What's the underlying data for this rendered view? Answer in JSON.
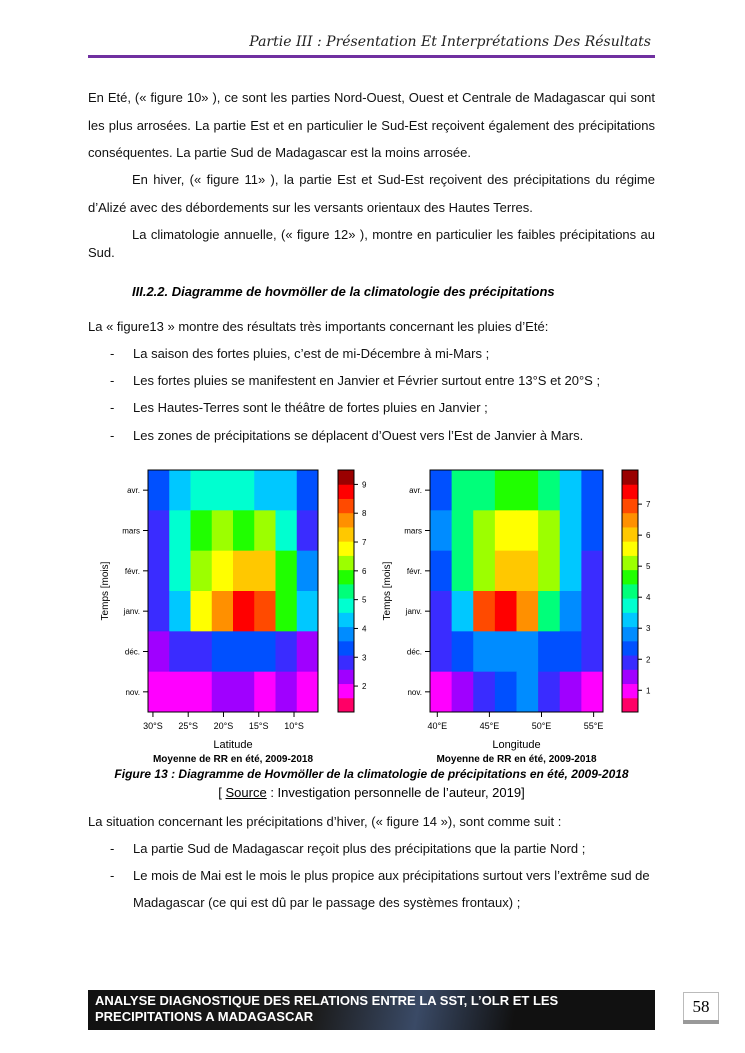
{
  "header": {
    "title": "Partie III : Présentation Et Interprétations Des Résultats"
  },
  "paragraphs": [
    "En Eté, (« figure 10» ), ce sont les parties Nord-Ouest, Ouest et Centrale de Madagascar qui sont les plus arrosées. La partie Est et en particulier le Sud-Est reçoivent également des précipitations conséquentes. La partie Sud de Madagascar est la moins arrosée.",
    "En hiver, (« figure 11» ), la partie Est et Sud-Est reçoivent des précipitations du régime d’Alizé avec des débordements sur les versants orientaux des Hautes Terres.",
    "La climatologie annuelle, (« figure 12» ), montre en particulier les faibles précipitations au Sud."
  ],
  "section_title": "III.2.2. Diagramme de hovmöller de la climatologie des précipitations",
  "intro": "La « figure13 » montre des résultats très importants concernant les pluies d’Eté:",
  "bullets": [
    "La saison des fortes pluies, c’est de mi-Décembre à mi-Mars ;",
    "Les fortes pluies se manifestent en Janvier et Février surtout entre 13°S et 20°S ;",
    "Les Hautes-Terres sont le théâtre de fortes pluies en Janvier ;",
    "Les zones de précipitations se déplacent d’Ouest vers l’Est de Janvier à Mars."
  ],
  "chart_data": [
    {
      "type": "heatmap",
      "ylabel": "Temps [mois]",
      "xlabel": "Latitude",
      "subtitle": "Moyenne de RR en été, 2009-2018",
      "xlim": [
        -30.7,
        -6.6
      ],
      "xticks": [
        {
          "value": -30,
          "label": "30°S"
        },
        {
          "value": -25,
          "label": "25°S"
        },
        {
          "value": -20,
          "label": "20°S"
        },
        {
          "value": -15,
          "label": "15°S"
        },
        {
          "value": -10,
          "label": "10°S"
        }
      ],
      "rows": [
        "avr.",
        "mars",
        "févr.",
        "janv.",
        "déc.",
        "nov."
      ],
      "values": [
        [
          3.5,
          4.5,
          5,
          5,
          5,
          4.5,
          4.5,
          3.5
        ],
        [
          3,
          5,
          6,
          6.5,
          6,
          6.5,
          5,
          3
        ],
        [
          3,
          5,
          6.5,
          7,
          7.5,
          7.5,
          6,
          4
        ],
        [
          3,
          4.5,
          7,
          8,
          9,
          8.5,
          6,
          4.5
        ],
        [
          2.5,
          3,
          3,
          3.5,
          3.5,
          3.5,
          3,
          2.5
        ],
        [
          2,
          2,
          2,
          2.5,
          2.5,
          2,
          2.5,
          2
        ]
      ],
      "clim": [
        1.1,
        9.5
      ],
      "cticks": [
        2,
        3,
        4,
        5,
        6,
        7,
        8,
        9
      ],
      "colors": [
        "#ff0066",
        "#ff00ff",
        "#a000ff",
        "#3a2cff",
        "#0050ff",
        "#008cff",
        "#00c8ff",
        "#00ffd0",
        "#00ff7a",
        "#20ff00",
        "#9cff00",
        "#ffff00",
        "#ffc800",
        "#ff9000",
        "#ff4a00",
        "#ff0000",
        "#9a0000"
      ]
    },
    {
      "type": "heatmap",
      "ylabel": "Temps [mois]",
      "xlabel": "Longitude",
      "subtitle": "Moyenne de RR en été, 2009-2018",
      "xlim": [
        39.3,
        55.9
      ],
      "xticks": [
        {
          "value": 40,
          "label": "40°E"
        },
        {
          "value": 45,
          "label": "45°E"
        },
        {
          "value": 50,
          "label": "50°E"
        },
        {
          "value": 55,
          "label": "55°E"
        }
      ],
      "rows": [
        "avr.",
        "mars",
        "févr.",
        "janv.",
        "déc.",
        "nov."
      ],
      "values": [
        [
          2.5,
          4,
          4,
          4.5,
          4.5,
          4,
          3.5,
          2.5
        ],
        [
          3,
          4,
          5,
          5.5,
          5.5,
          5,
          3.5,
          2.5
        ],
        [
          2.5,
          4,
          5,
          6,
          6,
          5,
          3.5,
          2
        ],
        [
          2,
          3.5,
          7,
          7.5,
          6.5,
          4,
          3,
          2
        ],
        [
          2,
          2.5,
          3,
          3,
          3,
          2.5,
          2.5,
          2
        ],
        [
          1,
          1.5,
          2,
          2.5,
          3,
          2,
          1.5,
          1
        ]
      ],
      "clim": [
        0.3,
        8.1
      ],
      "cticks": [
        1,
        2,
        3,
        4,
        5,
        6,
        7
      ],
      "colors": [
        "#ff0066",
        "#ff00ff",
        "#a000ff",
        "#3a2cff",
        "#0050ff",
        "#008cff",
        "#00c8ff",
        "#00ffd0",
        "#00ff7a",
        "#20ff00",
        "#9cff00",
        "#ffff00",
        "#ffc800",
        "#ff9000",
        "#ff4a00",
        "#ff0000",
        "#9a0000"
      ]
    }
  ],
  "figure_caption": "Figure 13 : Diagramme de Hovmöller de la climatologie de précipitations en été, 2009-2018",
  "source": [
    "[ ",
    "Source",
    " : Investigation personnelle de l’auteur, 2019]"
  ],
  "paragraph2": "La situation concernant les précipitations d’hiver, (« figure 14 »), sont comme suit :",
  "bullets2": [
    "La partie Sud de Madagascar reçoit plus des précipitations que la partie Nord ;",
    "Le mois de Mai est le mois le plus propice aux précipitations surtout vers l’extrême sud de Madagascar (ce qui est dû par le passage des systèmes frontaux) ;"
  ],
  "footer": {
    "text": "ANALYSE DIAGNOSTIQUE DES RELATIONS ENTRE LA SST, L’OLR ET LES PRECIPITATIONS A MADAGASCAR",
    "page": "58"
  }
}
